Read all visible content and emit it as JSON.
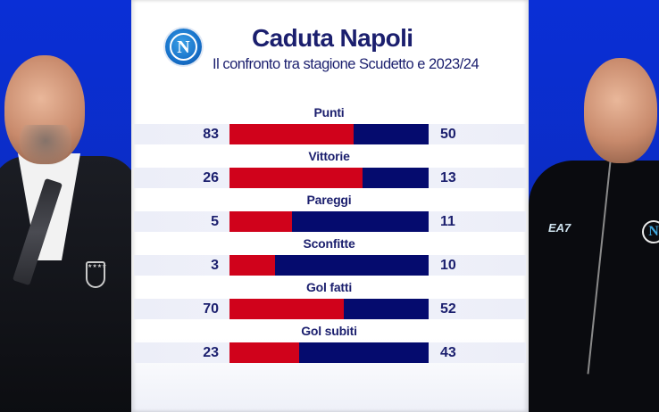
{
  "header": {
    "logo_letter": "N",
    "title": "Caduta Napoli",
    "subtitle": "Il confronto tra stagione Scudetto e 2023/24"
  },
  "left_photo": {
    "description": "coach in dark suit with FIGC crest on blue background"
  },
  "right_photo": {
    "description": "coach in black Napoli tracksuit on blue background",
    "brand_text": "EA7",
    "badge_letter": "N"
  },
  "colors": {
    "scudetto_season": "#d0021b",
    "season_2023_24": "#050b6e",
    "text": "#1b1f6e",
    "side_background": "#0a2fd6"
  },
  "chart_data": {
    "type": "bar",
    "subtype": "diverging-stacked-horizontal",
    "title": "Caduta Napoli",
    "subtitle": "Il confronto tra stagione Scudetto e 2023/24",
    "categories": [
      "Punti",
      "Vittorie",
      "Pareggi",
      "Sconfitte",
      "Gol fatti",
      "Gol subiti"
    ],
    "series": [
      {
        "name": "Stagione Scudetto",
        "color": "#d0021b",
        "values": [
          83,
          26,
          5,
          3,
          70,
          23
        ]
      },
      {
        "name": "2023/24",
        "color": "#050b6e",
        "values": [
          50,
          13,
          11,
          10,
          52,
          43
        ]
      }
    ],
    "xlabel": "",
    "ylabel": "",
    "grid": false,
    "legend": "none"
  },
  "rows": [
    {
      "label": "Punti",
      "left": "83",
      "right": "50"
    },
    {
      "label": "Vittorie",
      "left": "26",
      "right": "13"
    },
    {
      "label": "Pareggi",
      "left": "5",
      "right": "11"
    },
    {
      "label": "Sconfitte",
      "left": "3",
      "right": "10"
    },
    {
      "label": "Gol fatti",
      "left": "70",
      "right": "52"
    },
    {
      "label": "Gol subiti",
      "left": "23",
      "right": "43"
    }
  ]
}
